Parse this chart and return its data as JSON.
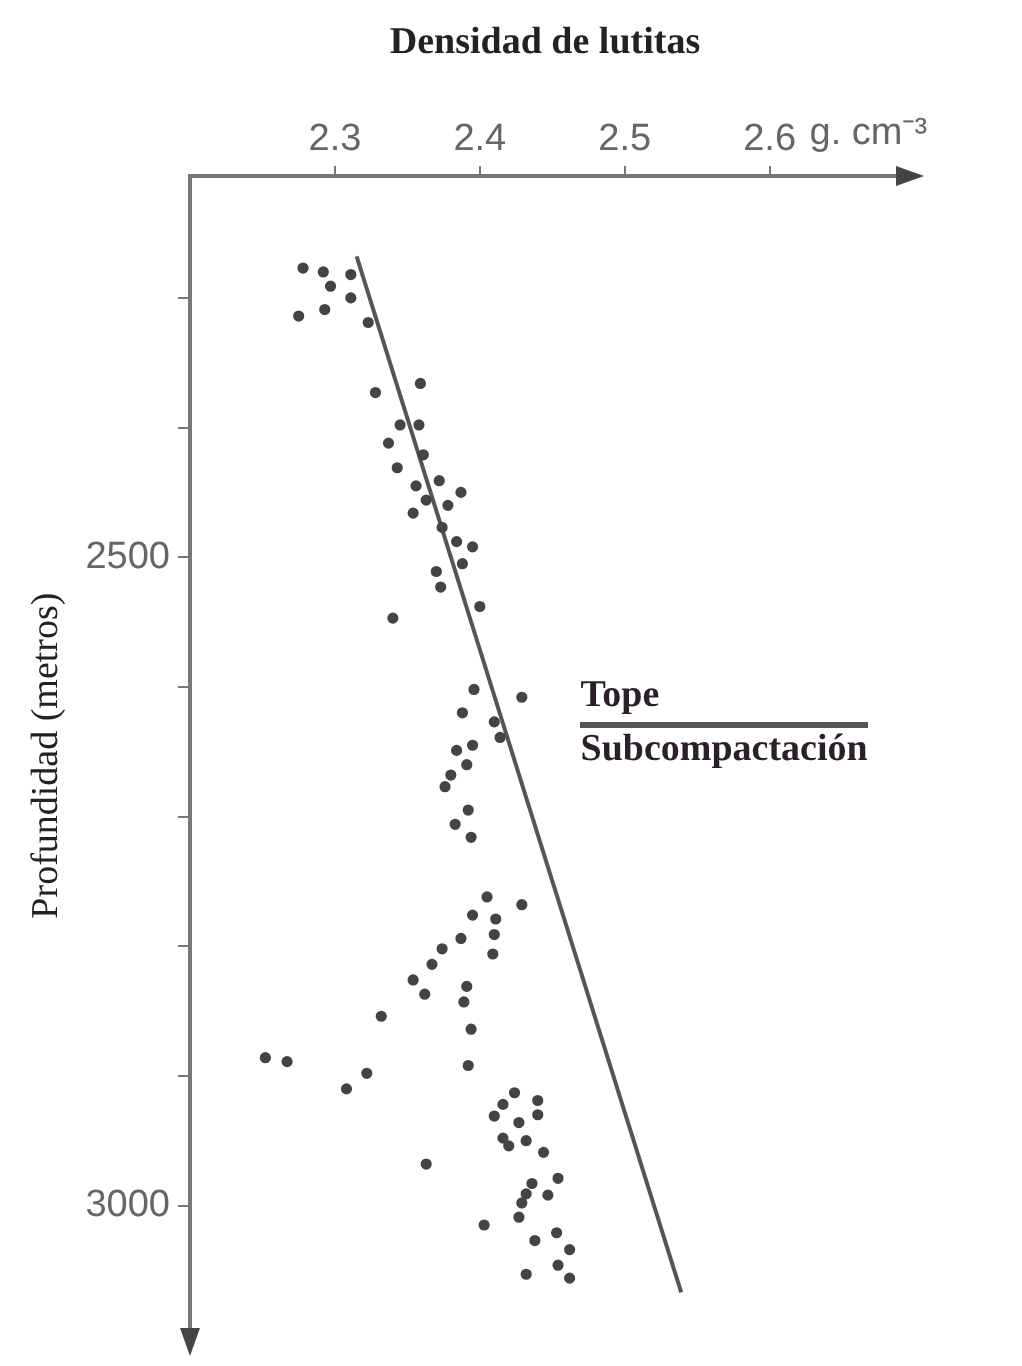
{
  "chart_data": {
    "type": "scatter",
    "xlabel": "Densidad de lutitas",
    "ylabel": "Profundidad (metros)",
    "annotations": [
      "g. cm⁻³",
      "Tope",
      "Subcompactación"
    ],
    "xlim": [
      2.2,
      2.69
    ],
    "ylim": [
      3100,
      2206
    ],
    "xticks": [
      2.3,
      2.4,
      2.5,
      2.6
    ],
    "yticks": [
      {
        "value": 2300,
        "label": null
      },
      {
        "value": 2400,
        "label": null
      },
      2500,
      {
        "value": 2600,
        "label": null
      },
      {
        "value": 2700,
        "label": null
      },
      {
        "value": 2800,
        "label": null
      },
      {
        "value": 2900,
        "label": null
      },
      3000
    ],
    "grid": false,
    "legend": false,
    "marker": "circle",
    "series": [
      {
        "color": "#444444",
        "x": [
          2.278,
          2.292,
          2.297,
          2.311,
          2.311,
          2.275,
          2.293,
          2.323,
          2.328,
          2.359,
          2.345,
          2.358,
          2.337,
          2.361,
          2.343,
          2.372,
          2.356,
          2.387,
          2.363,
          2.378,
          2.354,
          2.374,
          2.384,
          2.395,
          2.388,
          2.37,
          2.373,
          2.4,
          2.34,
          2.396,
          2.429,
          2.388,
          2.41,
          2.414,
          2.395,
          2.384,
          2.391,
          2.38,
          2.376,
          2.392,
          2.383,
          2.394,
          2.405,
          2.429,
          2.395,
          2.411,
          2.41,
          2.387,
          2.374,
          2.409,
          2.367,
          2.354,
          2.391,
          2.362,
          2.389,
          2.332,
          2.394,
          2.252,
          2.267,
          2.322,
          2.308,
          2.392,
          2.424,
          2.44,
          2.416,
          2.41,
          2.427,
          2.44,
          2.416,
          2.42,
          2.432,
          2.444,
          2.363,
          2.454,
          2.436,
          2.432,
          2.447,
          2.429,
          2.427,
          2.403,
          2.453,
          2.438,
          2.462,
          2.454,
          2.432,
          2.462
        ],
        "values": [
          2277,
          2280,
          2291,
          2282,
          2300,
          2314,
          2309,
          2319,
          2373,
          2366,
          2398,
          2398,
          2412,
          2421,
          2431,
          2441,
          2445,
          2450,
          2456,
          2460,
          2466,
          2477,
          2488,
          2492,
          2505,
          2511,
          2523,
          2538,
          2547,
          2602,
          2608,
          2620,
          2627,
          2639,
          2645,
          2649,
          2660,
          2668,
          2677,
          2695,
          2706,
          2716,
          2762,
          2768,
          2776,
          2779,
          2791,
          2794,
          2802,
          2806,
          2814,
          2826,
          2831,
          2837,
          2843,
          2854,
          2864,
          2886,
          2889,
          2898,
          2910,
          2892,
          2913,
          2919,
          2922,
          2931,
          2936,
          2930,
          2948,
          2954,
          2950,
          2959,
          2968,
          2979,
          2983,
          2991,
          2992,
          2998,
          3009,
          3015,
          3021,
          3027,
          3034,
          3046,
          3053,
          3056
        ]
      },
      {
        "type": "line",
        "color": "#555555",
        "marker": "none",
        "line_style": "solid",
        "x": [
          2.315,
          2.539
        ],
        "values": [
          2268,
          3067
        ]
      }
    ]
  }
}
